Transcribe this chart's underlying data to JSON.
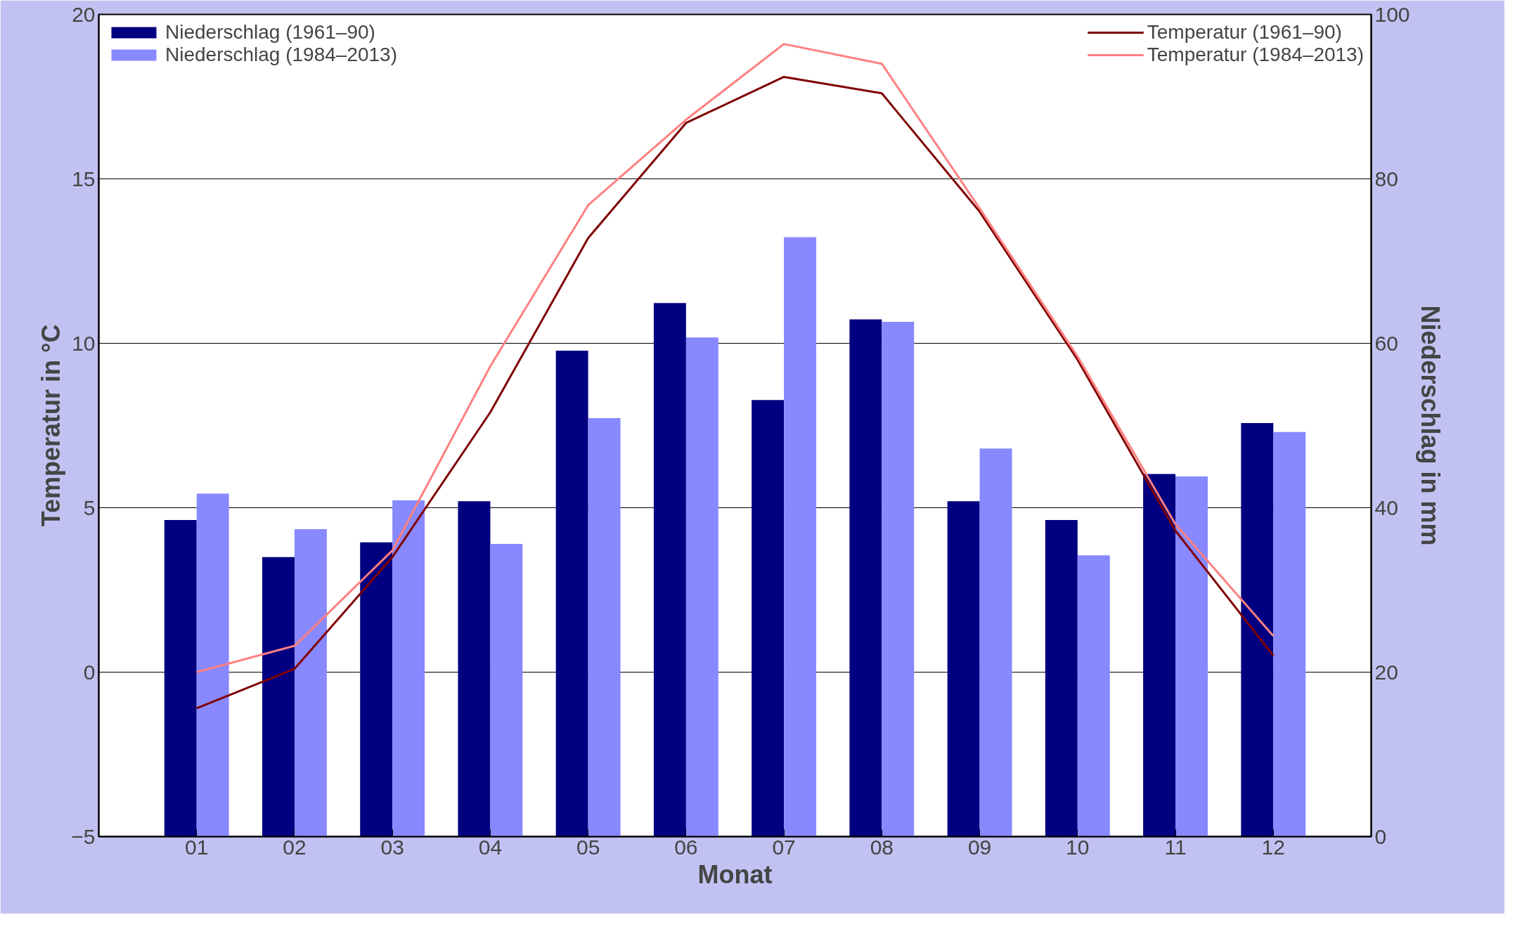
{
  "chart_data": {
    "type": "bar",
    "xlabel": "Monat",
    "ylabel": "Temperatur in °C",
    "y2label": "Niederschlag in mm",
    "categories": [
      "01",
      "02",
      "03",
      "04",
      "05",
      "06",
      "07",
      "08",
      "09",
      "10",
      "11",
      "12"
    ],
    "series": [
      {
        "name": "Niederschlag (1961–90)",
        "axis": "y2",
        "color": "#000080",
        "values": [
          38.5,
          34.0,
          35.8,
          40.8,
          59.1,
          64.9,
          53.1,
          62.9,
          40.8,
          38.5,
          44.1,
          50.3
        ]
      },
      {
        "name": "Niederschlag (1984–2013)",
        "axis": "y2",
        "color": "#8888ff",
        "values": [
          41.7,
          37.4,
          40.9,
          35.6,
          50.9,
          60.7,
          72.9,
          62.6,
          47.2,
          34.2,
          43.8,
          49.2
        ]
      },
      {
        "name": "Temperatur (1961–90)",
        "type": "line",
        "color": "#800000",
        "values": [
          -1.1,
          0.1,
          3.5,
          7.9,
          13.2,
          16.7,
          18.1,
          17.6,
          14.0,
          9.5,
          4.3,
          0.5
        ]
      },
      {
        "name": "Temperatur (1984–2013)",
        "type": "line",
        "color": "#ff8080",
        "values": [
          0.0,
          0.8,
          3.7,
          9.3,
          14.2,
          16.8,
          19.1,
          18.5,
          14.1,
          9.6,
          4.5,
          1.1
        ]
      }
    ],
    "ylim": [
      -5,
      20
    ],
    "yticks": [
      -5,
      0,
      5,
      10,
      15,
      20
    ],
    "y2lim": [
      0,
      100
    ],
    "y2ticks": [
      0,
      20,
      40,
      60,
      80,
      100
    ],
    "grid": "y",
    "legend": "top",
    "marker": "none",
    "line_style": "solid"
  }
}
